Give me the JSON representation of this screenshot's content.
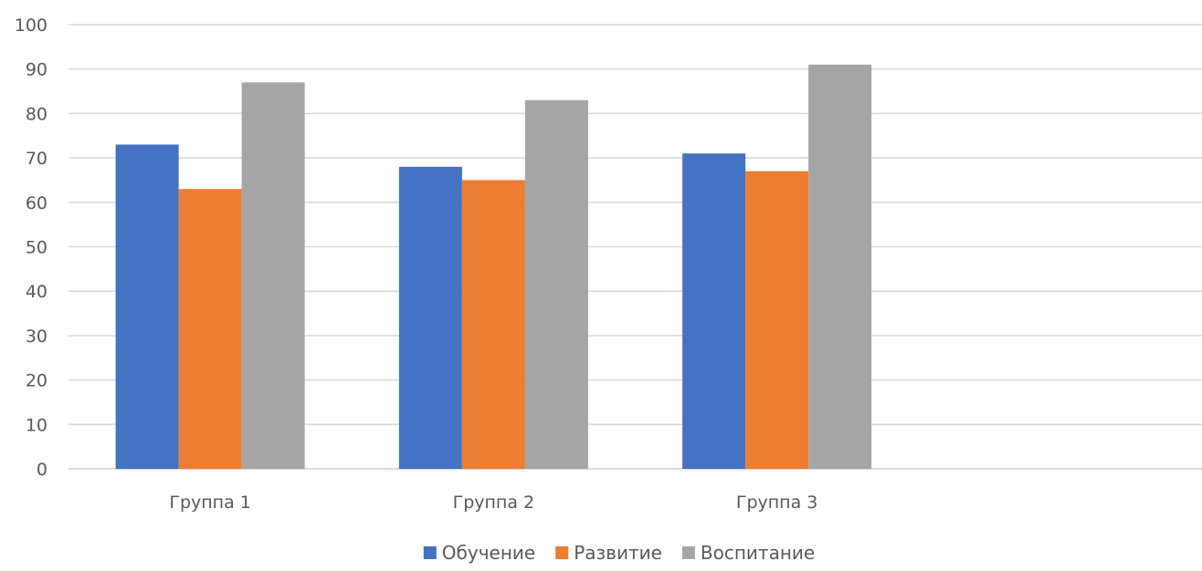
{
  "chart_data": {
    "type": "bar",
    "categories": [
      "Группа 1",
      "Группа 2",
      "Группа 3",
      ""
    ],
    "series": [
      {
        "name": "Обучение",
        "color": "#4472C4",
        "values": [
          73,
          68,
          71,
          null
        ]
      },
      {
        "name": "Развитие",
        "color": "#ED7D31",
        "values": [
          63,
          65,
          67,
          null
        ]
      },
      {
        "name": "Воспитание",
        "color": "#A5A5A5",
        "values": [
          87,
          83,
          91,
          null
        ]
      }
    ],
    "y_ticks": [
      "0",
      "10",
      "20",
      "30",
      "40",
      "50",
      "60",
      "70",
      "80",
      "90",
      "100"
    ],
    "ylim": [
      0,
      100
    ],
    "grid": true,
    "legend_position": "bottom",
    "title": "",
    "xlabel": "",
    "ylabel": ""
  }
}
